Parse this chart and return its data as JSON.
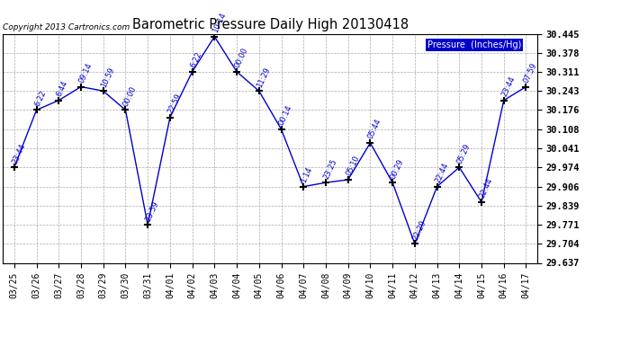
{
  "title": "Barometric Pressure Daily High 20130418",
  "copyright": "Copyright 2013 Cartronics.com",
  "legend_label": "Pressure  (Inches/Hg)",
  "background_color": "#ffffff",
  "grid_color": "#aaaaaa",
  "line_color": "#0000cc",
  "ylim": [
    29.637,
    30.445
  ],
  "yticks": [
    29.637,
    29.704,
    29.771,
    29.839,
    29.906,
    29.974,
    30.041,
    30.108,
    30.176,
    30.243,
    30.311,
    30.378,
    30.445
  ],
  "points": [
    {
      "date": "03/25",
      "value": 29.974,
      "label": "23:44"
    },
    {
      "date": "03/26",
      "value": 30.176,
      "label": "6:22"
    },
    {
      "date": "03/27",
      "value": 30.21,
      "label": "6:44"
    },
    {
      "date": "03/28",
      "value": 30.258,
      "label": "09:14"
    },
    {
      "date": "03/29",
      "value": 30.243,
      "label": "10:59"
    },
    {
      "date": "03/30",
      "value": 30.176,
      "label": "00:00"
    },
    {
      "date": "03/31",
      "value": 29.771,
      "label": "23:59"
    },
    {
      "date": "04/01",
      "value": 30.15,
      "label": "22:59"
    },
    {
      "date": "04/02",
      "value": 30.311,
      "label": "6:22"
    },
    {
      "date": "04/03",
      "value": 30.435,
      "label": "10:14"
    },
    {
      "date": "04/04",
      "value": 30.311,
      "label": "00:00"
    },
    {
      "date": "04/05",
      "value": 30.243,
      "label": "11:29"
    },
    {
      "date": "04/06",
      "value": 30.108,
      "label": "00:14"
    },
    {
      "date": "04/07",
      "value": 29.906,
      "label": "1:14"
    },
    {
      "date": "04/08",
      "value": 29.92,
      "label": "23:25"
    },
    {
      "date": "04/09",
      "value": 29.93,
      "label": "05:10"
    },
    {
      "date": "04/10",
      "value": 30.06,
      "label": "05:44"
    },
    {
      "date": "04/11",
      "value": 29.92,
      "label": "00:29"
    },
    {
      "date": "04/12",
      "value": 29.704,
      "label": "22:29"
    },
    {
      "date": "04/13",
      "value": 29.906,
      "label": "22:44"
    },
    {
      "date": "04/14",
      "value": 29.974,
      "label": "05:29"
    },
    {
      "date": "04/15",
      "value": 29.851,
      "label": "22:44"
    },
    {
      "date": "04/16",
      "value": 30.21,
      "label": "23:44"
    },
    {
      "date": "04/17",
      "value": 30.258,
      "label": "07:59"
    }
  ]
}
